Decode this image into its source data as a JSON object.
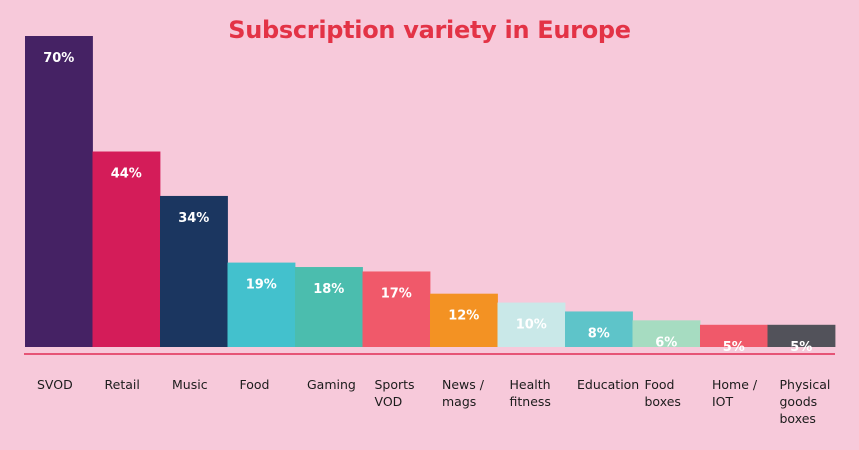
{
  "chart_data": {
    "type": "bar",
    "title": "Subscription variety in Europe",
    "xlabel": "",
    "ylabel": "",
    "ylim": [
      0,
      70
    ],
    "value_suffix": "%",
    "grid": false,
    "legend": "none",
    "categories": [
      [
        "SVOD"
      ],
      [
        "Retail"
      ],
      [
        "Music"
      ],
      [
        "Food"
      ],
      [
        "Gaming"
      ],
      [
        "Sports",
        "VOD"
      ],
      [
        "News /",
        "mags"
      ],
      [
        "Health",
        "fitness"
      ],
      [
        "Education"
      ],
      [
        "Food",
        "boxes"
      ],
      [
        "Home /",
        "IOT"
      ],
      [
        "Physical",
        "goods",
        "boxes"
      ]
    ],
    "values": [
      70,
      44,
      34,
      19,
      18,
      17,
      12,
      10,
      8,
      6,
      5,
      5
    ],
    "value_labels": [
      "70%",
      "44%",
      "34%",
      "19%",
      "18%",
      "17%",
      "12%",
      "10%",
      "8%",
      "6%",
      "5%",
      "5%"
    ],
    "colors": [
      "#452264",
      "#d41c59",
      "#1b3660",
      "#43c1cd",
      "#4bbdae",
      "#f0596a",
      "#f39223",
      "#c9e8e8",
      "#5ec4c9",
      "#a6dcc1",
      "#f0596a",
      "#52525a"
    ],
    "baseline_color": "#e12e54"
  }
}
